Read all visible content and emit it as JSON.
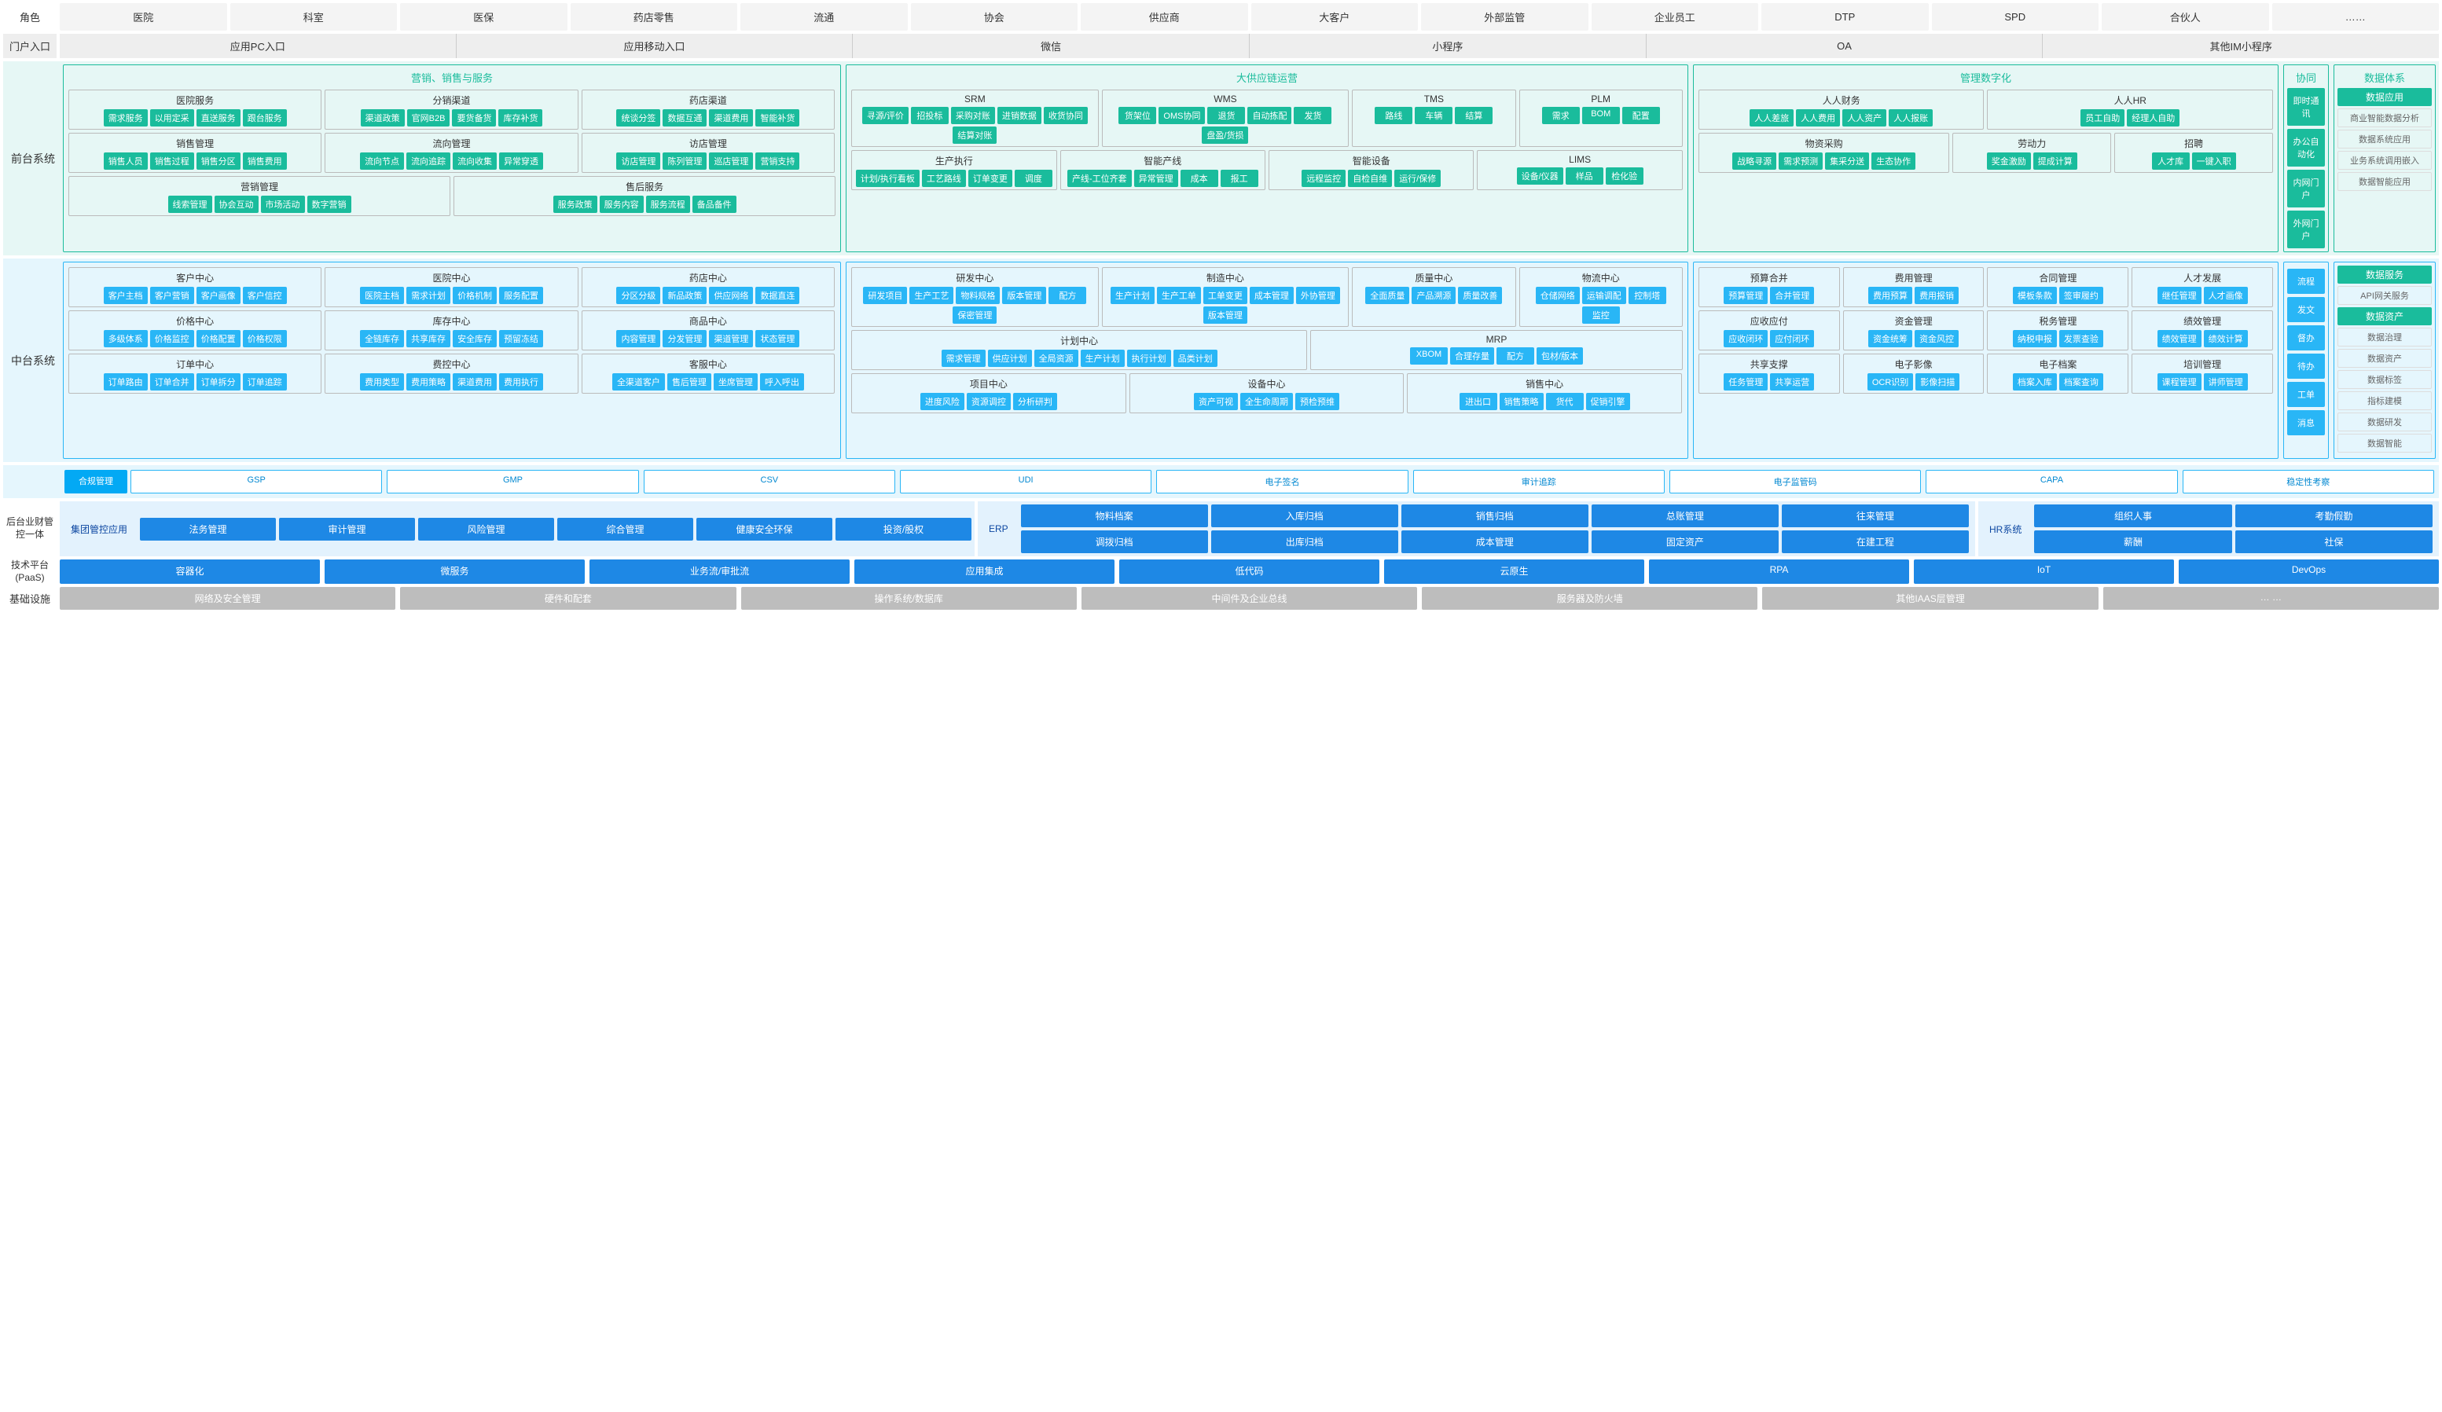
{
  "colors": {
    "teal": "#1abc9c",
    "cyan": "#29b6f6",
    "cyanDark": "#0288d1",
    "blue": "#1e88e5",
    "gray": "#bdbdbd",
    "frontBg": "#e6f7f5",
    "midBg": "#e5f6fd"
  },
  "rows": {
    "roles": {
      "label": "角色",
      "items": [
        "医院",
        "科室",
        "医保",
        "药店零售",
        "流通",
        "协会",
        "供应商",
        "大客户",
        "外部监管",
        "企业员工",
        "DTP",
        "SPD",
        "合伙人",
        "……"
      ]
    },
    "portals": {
      "label": "门户入口",
      "items": [
        "应用PC入口",
        "应用移动入口",
        "微信",
        "小程序",
        "OA",
        "其他IM小程序"
      ]
    }
  },
  "front": {
    "label": "前台系统",
    "c1": {
      "title": "营销、销售与服务",
      "groups": [
        {
          "title": "医院服务",
          "tags": [
            "需求服务",
            "以用定采",
            "直送服务",
            "跟台服务"
          ]
        },
        {
          "title": "分销渠道",
          "tags": [
            "渠道政策",
            "官网B2B",
            "要货备货",
            "库存补货"
          ]
        },
        {
          "title": "药店渠道",
          "tags": [
            "统谈分签",
            "数据互通",
            "渠道费用",
            "智能补货"
          ]
        },
        {
          "title": "销售管理",
          "tags": [
            "销售人员",
            "销售过程",
            "销售分区",
            "销售费用"
          ]
        },
        {
          "title": "流向管理",
          "tags": [
            "流向节点",
            "流向追踪",
            "流向收集",
            "异常穿透"
          ]
        },
        {
          "title": "访店管理",
          "tags": [
            "访店管理",
            "陈列管理",
            "巡店管理",
            "营销支持"
          ]
        },
        {
          "title": "营销管理",
          "tags": [
            "线索管理",
            "协会互动",
            "市场活动",
            "数字营销"
          ]
        },
        {
          "title": "售后服务",
          "tags": [
            "服务政策",
            "服务内容",
            "服务流程",
            "备品备件"
          ]
        }
      ]
    },
    "c2": {
      "title": "大供应链运营",
      "row1": [
        {
          "title": "SRM",
          "tags": [
            "寻源/评价",
            "招投标",
            "采购对账",
            "进销数据",
            "收货协同",
            "结算对账"
          ]
        },
        {
          "title": "WMS",
          "tags": [
            "货架位",
            "OMS协同",
            "退货",
            "自动拣配",
            "发货",
            "盘盈/货损"
          ]
        },
        {
          "title": "TMS",
          "tags": [
            "路线",
            "车辆",
            "结算"
          ]
        },
        {
          "title": "PLM",
          "tags": [
            "需求",
            "BOM",
            "配置"
          ]
        }
      ],
      "row2": [
        {
          "title": "生产执行",
          "tags": [
            "计划/执行看板",
            "工艺路线",
            "订单变更",
            "调度"
          ]
        },
        {
          "title": "智能产线",
          "tags": [
            "产线-工位齐套",
            "异常管理",
            "成本",
            "报工"
          ]
        },
        {
          "title": "智能设备",
          "tags": [
            "远程监控",
            "自检自维",
            "运行/保修"
          ]
        },
        {
          "title": "LIMS",
          "tags": [
            "设备/仪器",
            "样品",
            "检化验"
          ]
        }
      ]
    },
    "c3": {
      "title": "管理数字化",
      "row1": [
        {
          "title": "人人财务",
          "tags": [
            "人人差旅",
            "人人费用",
            "人人资产",
            "人人报账"
          ]
        },
        {
          "title": "人人HR",
          "tags": [
            "员工自助",
            "经理人自助"
          ]
        }
      ],
      "row2": [
        {
          "title": "物资采购",
          "tags": [
            "战略寻源",
            "需求预测",
            "集采分送",
            "生态协作"
          ]
        },
        {
          "title": "劳动力",
          "tags": [
            "奖金激励",
            "提成计算"
          ]
        },
        {
          "title": "招聘",
          "tags": [
            "人才库",
            "一键入职"
          ]
        }
      ]
    },
    "side": {
      "title": "协同",
      "items": [
        "即时通讯",
        "办公自动化",
        "内网门户",
        "外网门户"
      ]
    },
    "data": {
      "title": "数据体系",
      "header": "数据应用",
      "items": [
        "商业智能数据分析",
        "数据系统应用",
        "业务系统调用嵌入",
        "数据智能应用"
      ]
    }
  },
  "mid": {
    "label": "中台系统",
    "c1": [
      {
        "title": "客户中心",
        "tags": [
          "客户主档",
          "客户营销",
          "客户画像",
          "客户信控"
        ]
      },
      {
        "title": "医院中心",
        "tags": [
          "医院主档",
          "需求计划",
          "价格机制",
          "服务配置"
        ]
      },
      {
        "title": "药店中心",
        "tags": [
          "分区分级",
          "新品政策",
          "供应网络",
          "数据直连"
        ]
      },
      {
        "title": "价格中心",
        "tags": [
          "多级体系",
          "价格监控",
          "价格配置",
          "价格权限"
        ]
      },
      {
        "title": "库存中心",
        "tags": [
          "全链库存",
          "共享库存",
          "安全库存",
          "预留冻结"
        ]
      },
      {
        "title": "商品中心",
        "tags": [
          "内容管理",
          "分发管理",
          "渠道管理",
          "状态管理"
        ]
      },
      {
        "title": "订单中心",
        "tags": [
          "订单路由",
          "订单合并",
          "订单拆分",
          "订单追踪"
        ]
      },
      {
        "title": "费控中心",
        "tags": [
          "费用类型",
          "费用策略",
          "渠道费用",
          "费用执行"
        ]
      },
      {
        "title": "客服中心",
        "tags": [
          "全渠道客户",
          "售后管理",
          "坐席管理",
          "呼入呼出"
        ]
      }
    ],
    "c2r1": [
      {
        "title": "研发中心",
        "tags": [
          "研发项目",
          "生产工艺",
          "物料规格",
          "版本管理",
          "配方",
          "保密管理"
        ]
      },
      {
        "title": "制造中心",
        "tags": [
          "生产计划",
          "生产工单",
          "工单变更",
          "成本管理",
          "外协管理",
          "版本管理"
        ]
      },
      {
        "title": "质量中心",
        "tags": [
          "全面质量",
          "产品溯源",
          "质量改善"
        ]
      },
      {
        "title": "物流中心",
        "tags": [
          "仓储网络",
          "运输调配",
          "控制塔",
          "监控"
        ]
      }
    ],
    "c2r2": [
      {
        "title": "计划中心",
        "tags": [
          "需求管理",
          "供应计划",
          "全局资源",
          "生产计划",
          "执行计划",
          "品类计划"
        ]
      },
      {
        "title": "MRP",
        "tags": [
          "XBOM",
          "合理存量",
          "配方",
          "包材/版本"
        ]
      }
    ],
    "c2r3": [
      {
        "title": "项目中心",
        "tags": [
          "进度风险",
          "资源调控",
          "分析研判"
        ]
      },
      {
        "title": "设备中心",
        "tags": [
          "资产可视",
          "全生命周期",
          "预检预维"
        ]
      },
      {
        "title": "销售中心",
        "tags": [
          "进出口",
          "销售策略",
          "货代",
          "促销引擎"
        ]
      }
    ],
    "c3": [
      {
        "title": "预算合并",
        "tags": [
          "预算管理",
          "合并管理"
        ]
      },
      {
        "title": "费用管理",
        "tags": [
          "费用预算",
          "费用报销"
        ]
      },
      {
        "title": "合同管理",
        "tags": [
          "模板条款",
          "签审履约"
        ]
      },
      {
        "title": "人才发展",
        "tags": [
          "继任管理",
          "人才画像"
        ]
      },
      {
        "title": "应收应付",
        "tags": [
          "应收闭环",
          "应付闭环"
        ]
      },
      {
        "title": "资金管理",
        "tags": [
          "资金统筹",
          "资金风控"
        ]
      },
      {
        "title": "税务管理",
        "tags": [
          "纳税申报",
          "发票查验"
        ]
      },
      {
        "title": "绩效管理",
        "tags": [
          "绩效管理",
          "绩效计算"
        ]
      },
      {
        "title": "共享支撑",
        "tags": [
          "任务管理",
          "共享运营"
        ]
      },
      {
        "title": "电子影像",
        "tags": [
          "OCR识别",
          "影像扫描"
        ]
      },
      {
        "title": "电子档案",
        "tags": [
          "档案入库",
          "档案查询"
        ]
      },
      {
        "title": "培训管理",
        "tags": [
          "课程管理",
          "讲师管理"
        ]
      }
    ],
    "side": [
      "流程",
      "发文",
      "督办",
      "待办",
      "工单",
      "消息"
    ],
    "data": {
      "h1": "数据服务",
      "i1": [
        "API网关服务"
      ],
      "h2": "数据资产",
      "i2": [
        "数据治理",
        "数据资产",
        "数据标签",
        "指标建模",
        "数据研发",
        "数据智能"
      ]
    }
  },
  "compliance": {
    "label": "合规管理",
    "items": [
      "GSP",
      "GMP",
      "CSV",
      "UDI",
      "电子签名",
      "审计追踪",
      "电子监管码",
      "CAPA",
      "稳定性考察"
    ]
  },
  "back": {
    "label": "后台业财管控一体",
    "g1": {
      "label": "集团管控应用",
      "items": [
        "法务管理",
        "审计管理",
        "风险管理",
        "综合管理",
        "健康安全环保",
        "投资/股权"
      ]
    },
    "g2": {
      "label": "ERP",
      "items": [
        "物料档案",
        "入库归档",
        "销售归档",
        "总账管理",
        "往来管理",
        "调拨归档",
        "出库归档",
        "成本管理",
        "固定资产",
        "在建工程"
      ]
    },
    "g3": {
      "label": "HR系统",
      "items": [
        "组织人事",
        "考勤假勤",
        "薪酬",
        "社保"
      ]
    }
  },
  "paas": {
    "label": "技术平台(PaaS)",
    "items": [
      "容器化",
      "微服务",
      "业务流/审批流",
      "应用集成",
      "低代码",
      "云原生",
      "RPA",
      "IoT",
      "DevOps"
    ]
  },
  "infra": {
    "label": "基础设施",
    "items": [
      "网络及安全管理",
      "硬件和配套",
      "操作系统/数据库",
      "中间件及企业总线",
      "服务器及防火墙",
      "其他IAAS层管理",
      "… …"
    ]
  }
}
